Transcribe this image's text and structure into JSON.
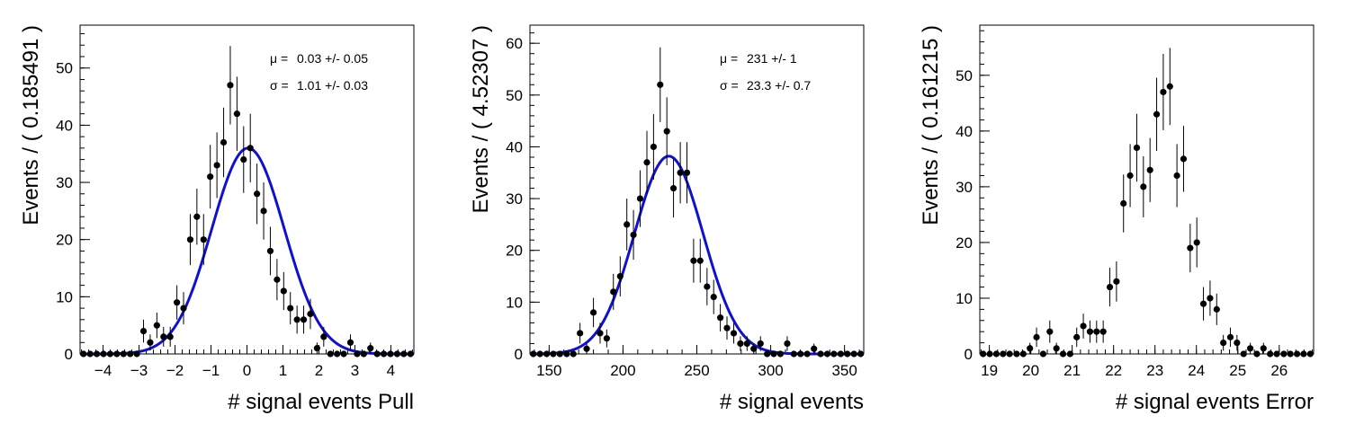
{
  "colors": {
    "axis": "#000000",
    "points": "#000000",
    "fit": "#1010d0"
  },
  "chart_data": [
    {
      "type": "scatter",
      "xlabel": "# signal events Pull",
      "ylabel": "Events / ( 0.185491 )",
      "xlim": [
        -4.64,
        4.64
      ],
      "ylim": [
        0,
        57.5
      ],
      "xticks": [
        -4,
        -3,
        -2,
        -1,
        0,
        1,
        2,
        3,
        4
      ],
      "yticks": [
        0,
        10,
        20,
        30,
        40,
        50
      ],
      "stats": [
        {
          "symbol": "μ =",
          "value": "0.03 +/- 0.05"
        },
        {
          "symbol": "σ =",
          "value": "1.01 +/- 0.03"
        }
      ],
      "series": [
        {
          "x": [
            -4.546,
            -4.36,
            -4.175,
            -3.989,
            -3.804,
            -3.618,
            -3.433,
            -3.247,
            -3.062,
            -2.876,
            -2.691,
            -2.505,
            -2.319,
            -2.134,
            -1.948,
            -1.763,
            -1.577,
            -1.392,
            -1.206,
            -1.021,
            -0.835,
            -0.649,
            -0.464,
            -0.278,
            -0.093,
            0.093,
            0.278,
            0.464,
            0.649,
            0.835,
            1.021,
            1.206,
            1.392,
            1.577,
            1.763,
            1.948,
            2.134,
            2.319,
            2.505,
            2.691,
            2.876,
            3.062,
            3.247,
            3.433,
            3.618,
            3.804,
            3.989,
            4.175,
            4.36,
            4.546
          ],
          "y": [
            0,
            0,
            0,
            0,
            0,
            0,
            0,
            0,
            0,
            4,
            2,
            5,
            3,
            3,
            9,
            8,
            20,
            24,
            20,
            31,
            33,
            37,
            47,
            42,
            34,
            36,
            28,
            25,
            18,
            13,
            11,
            8,
            6,
            6,
            7,
            1,
            3,
            0,
            0,
            0,
            2,
            0,
            0,
            1,
            0,
            0,
            0,
            0,
            0,
            0
          ]
        }
      ],
      "fit": {
        "mean": 0.03,
        "sigma": 1.01,
        "amplitude": 36
      }
    },
    {
      "type": "scatter",
      "xlabel": "# signal events",
      "ylabel": "Events / ( 4.52307 )",
      "xlim": [
        137,
        363
      ],
      "ylim": [
        0,
        63.5
      ],
      "xticks": [
        150,
        200,
        250,
        300,
        350
      ],
      "yticks": [
        0,
        10,
        20,
        30,
        40,
        50,
        60
      ],
      "stats": [
        {
          "symbol": "μ =",
          "value": "231 +/- 1"
        },
        {
          "symbol": "σ =",
          "value": "23.3 +/- 0.7"
        }
      ],
      "series": [
        {
          "x": [
            139.3,
            143.8,
            148.3,
            152.8,
            157.3,
            161.9,
            166.4,
            170.9,
            175.4,
            180.0,
            184.5,
            189.0,
            193.5,
            198.1,
            202.6,
            207.1,
            211.6,
            216.2,
            220.7,
            225.2,
            229.7,
            234.2,
            238.8,
            243.3,
            247.8,
            252.3,
            256.9,
            261.4,
            265.9,
            270.4,
            275.0,
            279.5,
            284.0,
            288.5,
            293.1,
            297.6,
            302.1,
            306.6,
            311.2,
            315.7,
            320.2,
            324.7,
            329.3,
            333.8,
            338.3,
            342.8,
            347.4,
            351.9,
            356.4,
            360.9
          ],
          "y": [
            0,
            0,
            0,
            0,
            0,
            0,
            0,
            4,
            1,
            8,
            4,
            3,
            12,
            15,
            25,
            23,
            30,
            37,
            40,
            52,
            43,
            32,
            35,
            35,
            18,
            18,
            13,
            11,
            7,
            5,
            4,
            2,
            2,
            1,
            2,
            0,
            0,
            0,
            2,
            0,
            0,
            0,
            1,
            0,
            0,
            0,
            0,
            0,
            0,
            0
          ]
        }
      ],
      "fit": {
        "mean": 231,
        "sigma": 23.3,
        "amplitude": 38.2
      }
    },
    {
      "type": "scatter",
      "xlabel": "# signal events Error",
      "ylabel": "Events / ( 0.161215 )",
      "xlim": [
        18.77,
        26.83
      ],
      "ylim": [
        0,
        59.0
      ],
      "xticks": [
        19,
        20,
        21,
        22,
        23,
        24,
        25,
        26
      ],
      "yticks": [
        0,
        10,
        20,
        30,
        40,
        50
      ],
      "stats": [],
      "series": [
        {
          "x": [
            18.85,
            19.01,
            19.17,
            19.33,
            19.49,
            19.66,
            19.82,
            19.98,
            20.14,
            20.3,
            20.46,
            20.62,
            20.78,
            20.95,
            21.11,
            21.27,
            21.43,
            21.59,
            21.75,
            21.91,
            22.07,
            22.24,
            22.4,
            22.56,
            22.72,
            22.88,
            23.04,
            23.2,
            23.36,
            23.53,
            23.69,
            23.85,
            24.01,
            24.17,
            24.33,
            24.49,
            24.65,
            24.82,
            24.98,
            25.14,
            25.3,
            25.46,
            25.62,
            25.78,
            25.94,
            26.11,
            26.27,
            26.43,
            26.59,
            26.75
          ],
          "y": [
            0,
            0,
            0,
            0,
            0,
            0,
            0,
            1,
            3,
            0,
            4,
            1,
            0,
            0,
            3,
            5,
            4,
            4,
            4,
            12,
            13,
            27,
            32,
            37,
            30,
            33,
            43,
            47,
            48,
            32,
            35,
            19,
            20,
            9,
            10,
            8,
            2,
            3,
            2,
            0,
            1,
            0,
            1,
            0,
            0,
            0,
            0,
            0,
            0,
            0
          ]
        }
      ],
      "fit": null
    }
  ]
}
